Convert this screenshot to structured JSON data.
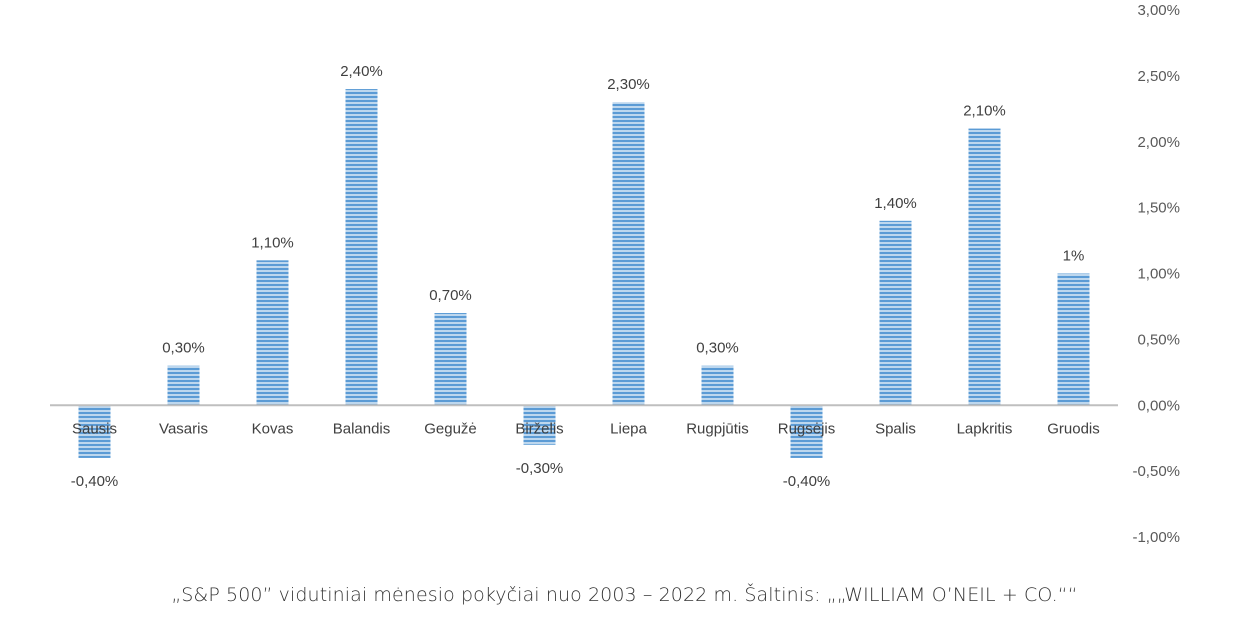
{
  "chart_data": {
    "type": "bar",
    "categories": [
      "Sausis",
      "Vasaris",
      "Kovas",
      "Balandis",
      "Gegužė",
      "Birželis",
      "Liepa",
      "Rugpjūtis",
      "Rugsėjis",
      "Spalis",
      "Lapkritis",
      "Gruodis"
    ],
    "values": [
      -0.4,
      0.3,
      1.1,
      2.4,
      0.7,
      -0.3,
      2.3,
      0.3,
      -0.4,
      1.4,
      2.1,
      1.0
    ],
    "data_labels": [
      "-0,40%",
      "0,30%",
      "1,10%",
      "2,40%",
      "0,70%",
      "-0,30%",
      "2,30%",
      "0,30%",
      "-0,40%",
      "1,40%",
      "2,10%",
      "1%"
    ],
    "ylim": [
      -1.0,
      3.0
    ],
    "yticks": [
      3.0,
      2.5,
      2.0,
      1.5,
      1.0,
      0.5,
      0.0,
      -0.5,
      -1.0
    ],
    "ytick_labels": [
      "3,00%",
      "2,50%",
      "2,00%",
      "1,50%",
      "1,00%",
      "0,50%",
      "0,00%",
      "-0,50%",
      "-1,00%"
    ],
    "y_axis_side": "right",
    "grid": false,
    "legend": "none",
    "bar_color": "#5b9bd5",
    "bar_stripe_color": "#bdd7ee",
    "axis_color": "#bfbfbf"
  },
  "caption": "„S&P 500” vidutiniai mėnesio pokyčiai nuo 2003 – 2022 m. Šaltinis: „„WILLIAM O’NEIL + CO.““"
}
